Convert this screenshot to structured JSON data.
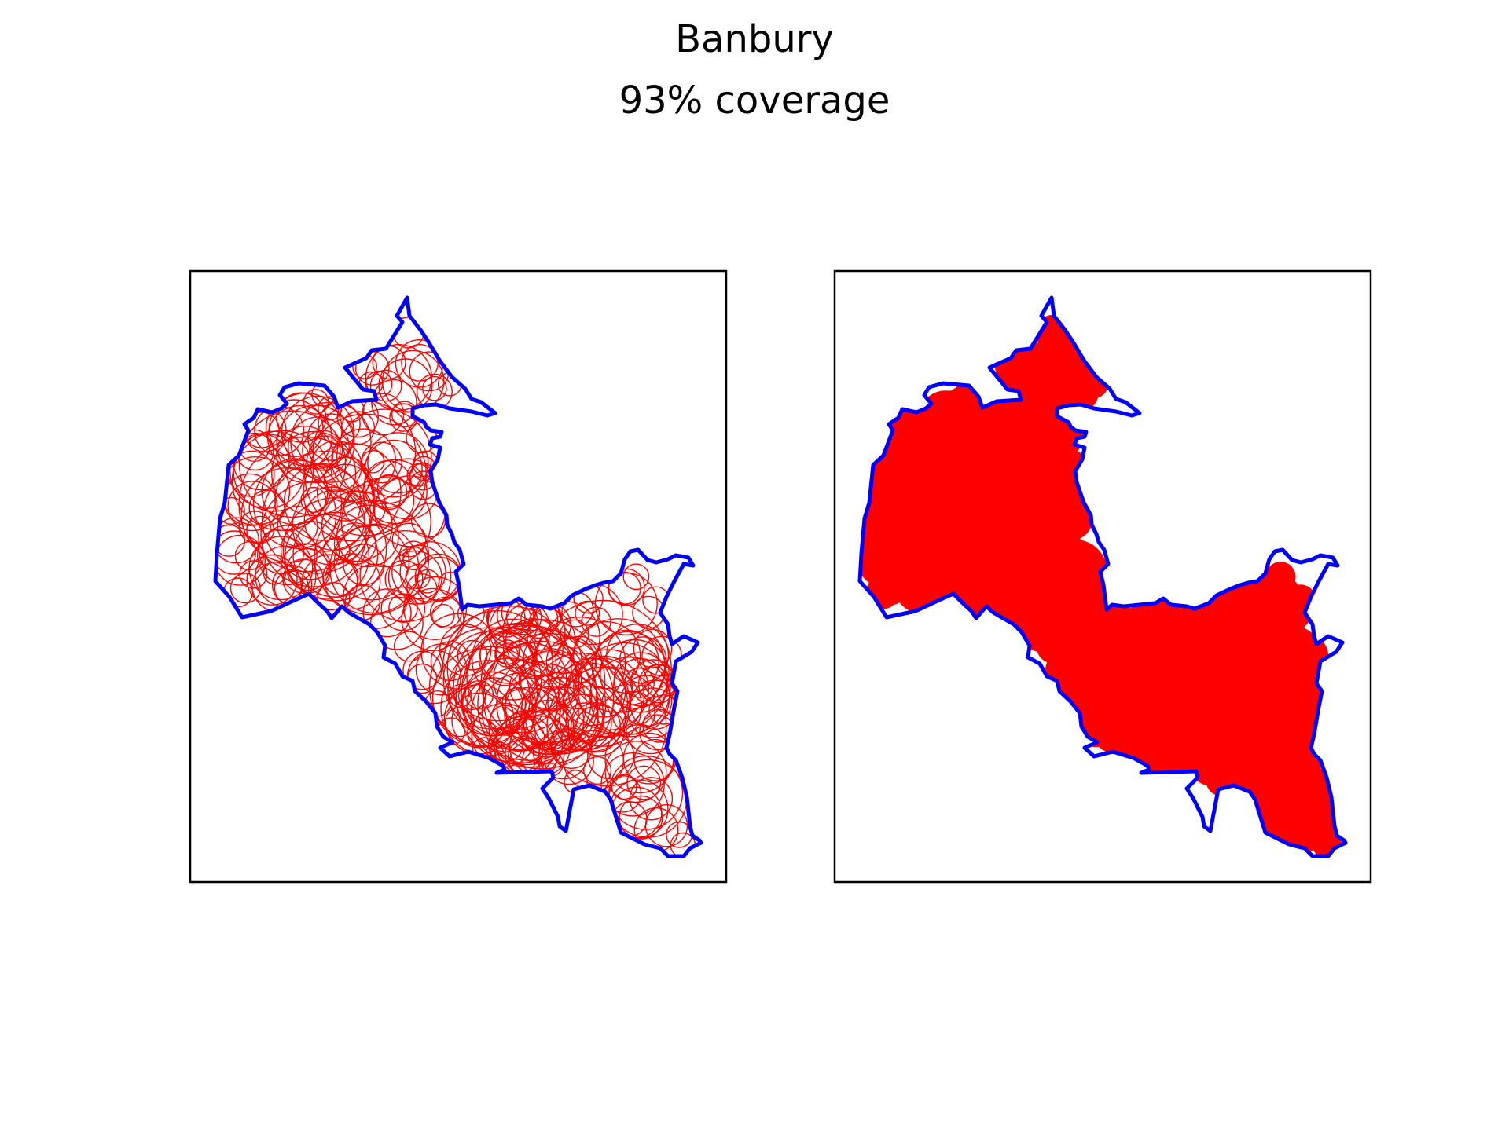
{
  "figure": {
    "title": "Banbury",
    "subtitle": "93% coverage",
    "coverage_percent": 93
  },
  "panels": [
    {
      "name": "left",
      "mode": "circle-outlines"
    },
    {
      "name": "right",
      "mode": "filled-union"
    }
  ],
  "colors": {
    "boundary": "#0000ff",
    "coverage": "#ff0000",
    "frame": "#000000",
    "background": "#ffffff"
  }
}
